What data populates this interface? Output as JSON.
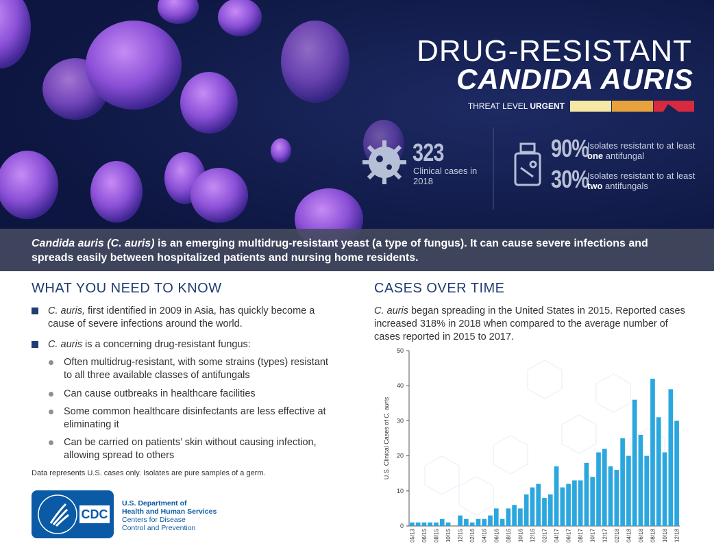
{
  "header": {
    "title_line1": "DRUG-RESISTANT",
    "title_line2": "CANDIDA AURIS",
    "threat_label": "THREAT LEVEL",
    "threat_level": "URGENT"
  },
  "stats": [
    {
      "number": "323",
      "text": "Clinical cases in 2018"
    },
    {
      "number": "90%",
      "text_before": "Isolates resistant to at least",
      "emphasis": "one",
      "text_after": "antifungal"
    },
    {
      "number": "30%",
      "text_before": "Isolates resistant to at least",
      "emphasis": "two",
      "text_after": "antifungals"
    }
  ],
  "intro": {
    "italic": "Candida auris (C. auris)",
    "text": "is an emerging multidrug-resistant yeast (a type of fungus). It can cause severe infections and spreads easily between hospitalized patients and nursing home residents."
  },
  "left": {
    "heading": "WHAT YOU NEED TO KNOW",
    "items": [
      {
        "italic": "C. auris,",
        "text": "first identified in 2009 in Asia, has quickly become a cause of severe infections around the world."
      },
      {
        "italic": "C. auris",
        "text": "is a concerning drug-resistant fungus:",
        "subitems": [
          "Often multidrug-resistant, with some strains (types) resistant to all three available classes of antifungals",
          "Can cause outbreaks in healthcare facilities",
          "Some common healthcare disinfectants are less effective at eliminating it",
          "Can be carried on patients’ skin without causing infection, allowing spread to others"
        ]
      }
    ],
    "note": "Data represents U.S. cases only. Isolates are pure samples of a germ."
  },
  "footer": {
    "logo": "CDC",
    "agency_line1": "U.S. Department of",
    "agency_line2": "Health and Human Services",
    "center_line1": "Centers for Disease",
    "center_line2": "Control and Prevention"
  },
  "right": {
    "heading": "CASES OVER TIME",
    "italic": "C. auris",
    "text": "began spreading in the United States in 2015. Reported cases increased 318% in 2018 when compared to the average number of cases reported in 2015 to 2017."
  },
  "chart_data": {
    "type": "bar",
    "y_label": "U.S. Clinical Cases of",
    "y_label_italic": "C. auris",
    "categories": [
      "05/13",
      null,
      "06/15",
      null,
      "08/15",
      null,
      "10/15",
      null,
      "12/15",
      null,
      "02/16",
      null,
      "04/16",
      null,
      "06/16",
      null,
      "08/16",
      null,
      "10/16",
      null,
      "12/16",
      null,
      "02/17",
      null,
      "04/17",
      null,
      "06/17",
      null,
      "08/17",
      null,
      "10/17",
      null,
      "12/17",
      null,
      "02/18",
      null,
      "04/18",
      null,
      "06/18",
      null,
      "08/18",
      null,
      "10/18",
      null,
      "12/18"
    ],
    "values": [
      1,
      1,
      1,
      1,
      1,
      2,
      1,
      0,
      3,
      2,
      1,
      2,
      2,
      3,
      5,
      2,
      5,
      6,
      5,
      9,
      11,
      12,
      8,
      9,
      17,
      11,
      12,
      13,
      13,
      18,
      14,
      21,
      22,
      17,
      16,
      25,
      20,
      36,
      26,
      20,
      42,
      31,
      21,
      39,
      30
    ],
    "color": "#2aa7df",
    "ylim": [
      0,
      50
    ],
    "yticks": [
      0,
      10,
      20,
      30,
      40,
      50
    ]
  }
}
